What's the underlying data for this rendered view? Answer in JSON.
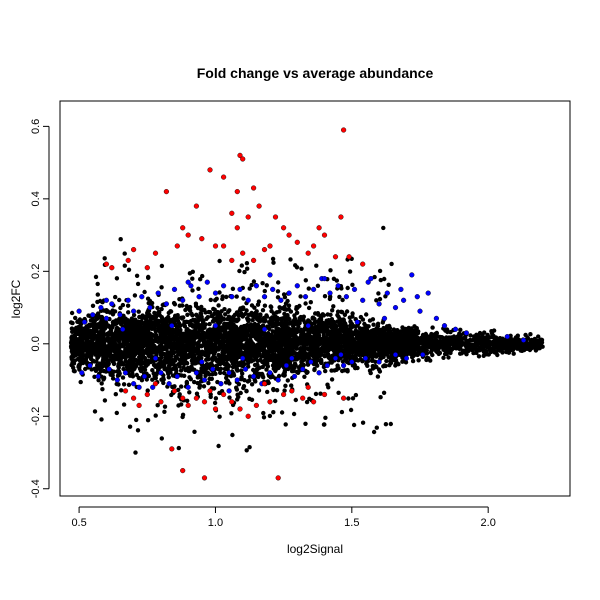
{
  "chart_data": {
    "type": "scatter",
    "title": "Fold change vs average abundance",
    "xlabel": "log2Signal",
    "ylabel": "log2FC",
    "xlim": [
      0.43,
      2.3
    ],
    "ylim": [
      -0.42,
      0.67
    ],
    "x_ticks": [
      0.5,
      1.0,
      1.5,
      2.0
    ],
    "x_tick_labels": [
      "0.5",
      "1.0",
      "1.5",
      "2.0"
    ],
    "y_ticks": [
      -0.4,
      -0.2,
      0.0,
      0.2,
      0.4,
      0.6
    ],
    "y_tick_labels": [
      "-0.4",
      "-0.2",
      "0.0",
      "0.2",
      "0.4",
      "0.6"
    ],
    "grid": false,
    "legend": "none",
    "colors": {
      "black": "#000000",
      "blue": "#0000ff",
      "red": "#ff0000"
    },
    "series": [
      {
        "color": "#0000ff",
        "points": [
          [
            0.5,
            0.09
          ],
          [
            0.52,
            0.06
          ],
          [
            0.55,
            0.08
          ],
          [
            0.58,
            0.1
          ],
          [
            0.6,
            0.07
          ],
          [
            0.62,
            0.11
          ],
          [
            0.65,
            0.08
          ],
          [
            0.68,
            0.12
          ],
          [
            0.7,
            0.09
          ],
          [
            0.73,
            0.13
          ],
          [
            0.76,
            0.1
          ],
          [
            0.79,
            0.14
          ],
          [
            0.82,
            0.11
          ],
          [
            0.85,
            0.15
          ],
          [
            0.88,
            0.12
          ],
          [
            0.91,
            0.16
          ],
          [
            0.94,
            0.13
          ],
          [
            0.97,
            0.17
          ],
          [
            1.0,
            0.14
          ],
          [
            1.03,
            0.16
          ],
          [
            1.06,
            0.13
          ],
          [
            1.09,
            0.15
          ],
          [
            1.12,
            0.12
          ],
          [
            1.15,
            0.16
          ],
          [
            1.18,
            0.13
          ],
          [
            1.21,
            0.15
          ],
          [
            1.24,
            0.12
          ],
          [
            1.27,
            0.14
          ],
          [
            1.3,
            0.16
          ],
          [
            1.33,
            0.13
          ],
          [
            1.36,
            0.15
          ],
          [
            1.39,
            0.18
          ],
          [
            1.42,
            0.14
          ],
          [
            1.45,
            0.16
          ],
          [
            1.48,
            0.13
          ],
          [
            1.51,
            0.15
          ],
          [
            1.54,
            0.12
          ],
          [
            1.57,
            0.18
          ],
          [
            1.6,
            0.11
          ],
          [
            1.63,
            0.14
          ],
          [
            1.66,
            0.1
          ],
          [
            1.69,
            0.12
          ],
          [
            1.72,
            0.19
          ],
          [
            1.75,
            0.09
          ],
          [
            1.78,
            0.14
          ],
          [
            1.81,
            0.07
          ],
          [
            1.84,
            0.05
          ],
          [
            1.88,
            0.04
          ],
          [
            1.92,
            0.03
          ],
          [
            0.51,
            -0.08
          ],
          [
            0.54,
            -0.06
          ],
          [
            0.57,
            -0.09
          ],
          [
            0.61,
            -0.07
          ],
          [
            0.64,
            -0.1
          ],
          [
            0.67,
            -0.08
          ],
          [
            0.7,
            -0.11
          ],
          [
            0.74,
            -0.09
          ],
          [
            0.77,
            -0.12
          ],
          [
            0.8,
            -0.08
          ],
          [
            0.83,
            -0.11
          ],
          [
            0.86,
            -0.09
          ],
          [
            0.9,
            -0.12
          ],
          [
            0.93,
            -0.08
          ],
          [
            0.96,
            -0.1
          ],
          [
            0.99,
            -0.07
          ],
          [
            1.02,
            -0.11
          ],
          [
            1.05,
            -0.08
          ],
          [
            1.08,
            -0.1
          ],
          [
            1.11,
            -0.07
          ],
          [
            1.14,
            -0.09
          ],
          [
            1.17,
            -0.11
          ],
          [
            1.2,
            -0.08
          ],
          [
            1.23,
            -0.1
          ],
          [
            1.26,
            -0.06
          ],
          [
            1.29,
            -0.09
          ],
          [
            1.32,
            -0.07
          ],
          [
            1.35,
            -0.05
          ],
          [
            1.38,
            -0.08
          ],
          [
            1.41,
            -0.06
          ],
          [
            1.44,
            -0.04
          ],
          [
            1.47,
            -0.06
          ],
          [
            1.5,
            -0.05
          ],
          [
            1.55,
            -0.04
          ],
          [
            1.6,
            -0.05
          ],
          [
            1.66,
            -0.03
          ],
          [
            1.7,
            -0.04
          ],
          [
            1.76,
            -0.03
          ],
          [
            0.66,
            0.04
          ],
          [
            0.84,
            0.05
          ],
          [
            1.0,
            0.05
          ],
          [
            1.18,
            0.04
          ],
          [
            1.34,
            0.05
          ],
          [
            1.52,
            0.06
          ],
          [
            0.78,
            -0.04
          ],
          [
            0.95,
            -0.05
          ],
          [
            1.1,
            -0.04
          ],
          [
            1.28,
            -0.04
          ],
          [
            1.46,
            -0.03
          ],
          [
            1.62,
            0.07
          ],
          [
            1.68,
            0.15
          ],
          [
            1.74,
            0.13
          ],
          [
            2.07,
            0.02
          ],
          [
            2.13,
            0.01
          ],
          [
            1.4,
            0.18
          ],
          [
            1.2,
            0.19
          ],
          [
            0.9,
            0.17
          ],
          [
            0.6,
            0.12
          ],
          [
            1.05,
            -0.13
          ],
          [
            0.72,
            -0.12
          ],
          [
            1.56,
            0.17
          ]
        ]
      },
      {
        "color": "#ff0000",
        "points": [
          [
            0.6,
            0.22
          ],
          [
            0.62,
            0.21
          ],
          [
            0.68,
            0.23
          ],
          [
            0.7,
            0.26
          ],
          [
            0.75,
            0.21
          ],
          [
            0.78,
            0.25
          ],
          [
            0.82,
            0.42
          ],
          [
            0.86,
            0.27
          ],
          [
            0.88,
            0.32
          ],
          [
            0.9,
            0.3
          ],
          [
            0.93,
            0.38
          ],
          [
            0.98,
            0.48
          ],
          [
            1.03,
            0.46
          ],
          [
            1.08,
            0.42
          ],
          [
            1.09,
            0.52
          ],
          [
            1.1,
            0.51
          ],
          [
            1.14,
            0.43
          ],
          [
            1.16,
            0.38
          ],
          [
            1.06,
            0.36
          ],
          [
            1.08,
            0.32
          ],
          [
            1.12,
            0.35
          ],
          [
            1.03,
            0.27
          ],
          [
            1.06,
            0.23
          ],
          [
            1.1,
            0.25
          ],
          [
            1.14,
            0.23
          ],
          [
            1.18,
            0.26
          ],
          [
            1.22,
            0.35
          ],
          [
            1.25,
            0.32
          ],
          [
            1.27,
            0.3
          ],
          [
            1.3,
            0.28
          ],
          [
            1.34,
            0.25
          ],
          [
            1.38,
            0.32
          ],
          [
            1.4,
            0.3
          ],
          [
            1.44,
            0.24
          ],
          [
            1.46,
            0.35
          ],
          [
            1.47,
            0.59
          ],
          [
            1.49,
            0.24
          ],
          [
            1.54,
            0.22
          ],
          [
            1.36,
            0.27
          ],
          [
            1.2,
            0.27
          ],
          [
            0.95,
            0.29
          ],
          [
            1.0,
            0.27
          ],
          [
            0.67,
            -0.13
          ],
          [
            0.7,
            -0.15
          ],
          [
            0.72,
            -0.17
          ],
          [
            0.75,
            -0.14
          ],
          [
            0.8,
            -0.16
          ],
          [
            0.85,
            -0.13
          ],
          [
            0.88,
            -0.15
          ],
          [
            0.9,
            -0.17
          ],
          [
            0.93,
            -0.15
          ],
          [
            0.96,
            -0.16
          ],
          [
            1.0,
            -0.18
          ],
          [
            1.03,
            -0.14
          ],
          [
            1.06,
            -0.16
          ],
          [
            1.09,
            -0.18
          ],
          [
            1.12,
            -0.2
          ],
          [
            1.15,
            -0.17
          ],
          [
            1.2,
            -0.16
          ],
          [
            1.25,
            -0.14
          ],
          [
            1.28,
            -0.13
          ],
          [
            1.32,
            -0.15
          ],
          [
            1.36,
            -0.16
          ],
          [
            1.4,
            -0.14
          ],
          [
            1.47,
            -0.15
          ],
          [
            0.84,
            -0.29
          ],
          [
            0.88,
            -0.35
          ],
          [
            0.96,
            -0.37
          ],
          [
            1.23,
            -0.37
          ],
          [
            0.78,
            -0.11
          ],
          [
            0.98,
            -0.13
          ],
          [
            1.18,
            -0.11
          ],
          [
            1.34,
            -0.12
          ]
        ]
      }
    ]
  }
}
